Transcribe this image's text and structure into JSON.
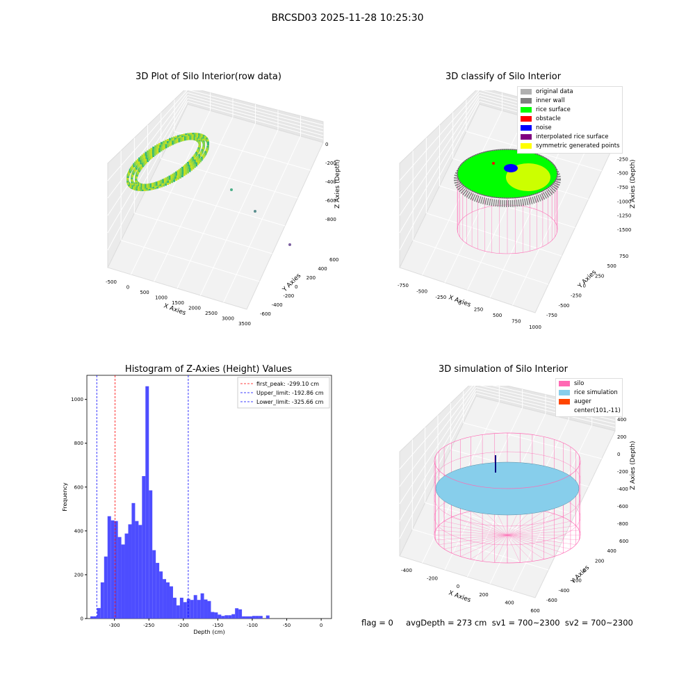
{
  "suptitle": "BRCSD03 2025-11-28 10:25:30",
  "footer": "flag = 0     avgDepth = 273 cm  sv1 = 700~2300  sv2 = 700~2300",
  "colors": {
    "original": "#b0b0b0",
    "inner_wall": "#808080",
    "rice_surface": "#00ff00",
    "obstacle": "#ff0000",
    "noise": "#0000ff",
    "interp": "#800080",
    "symmetric": "#ffff00",
    "silo": "#ff69b4",
    "rice_sim": "#87ceeb",
    "auger": "#ff4500",
    "hist": "#4d4dff"
  },
  "plot1": {
    "title": "3D Plot of Silo Interior(row data)",
    "xlabel": "X Axies",
    "ylabel": "Y Axies",
    "zlabel": "Z Axies (Depth)",
    "xticks": [
      "-500",
      "0",
      "500",
      "1000",
      "1500",
      "2000",
      "2500",
      "3000",
      "3500"
    ],
    "yticks": [
      "-600",
      "-400",
      "-200",
      "0",
      "200",
      "400",
      "600"
    ],
    "zticks": [
      "0",
      "-200",
      "-400",
      "-600",
      "-800"
    ]
  },
  "plot2": {
    "title": "3D classify of Silo Interior",
    "xlabel": "X Axies",
    "ylabel": "Y Axies",
    "zlabel": "Z Axies (Depth)",
    "xticks": [
      "-750",
      "-500",
      "-250",
      "0",
      "250",
      "500",
      "750",
      "1000"
    ],
    "yticks": [
      "-750",
      "-500",
      "-250",
      "0",
      "250",
      "500",
      "750"
    ],
    "zticks": [
      "0",
      "-250",
      "-500",
      "-750",
      "-1000",
      "-1250",
      "-1500"
    ],
    "legend": [
      "original data",
      "inner wall",
      "rice surface",
      "obstacle",
      "noise",
      "interpolated rice surface",
      "symmetric generated points"
    ]
  },
  "plot3": {
    "title": "3D simulation of Silo Interior",
    "xlabel": "X Axies",
    "ylabel": "Y Axies",
    "zlabel": "Z Axies (Depth)",
    "xticks": [
      "-400",
      "-200",
      "0",
      "200",
      "400",
      "600"
    ],
    "yticks": [
      "-600",
      "-400",
      "-200",
      "0",
      "200",
      "400",
      "600"
    ],
    "zticks": [
      "400",
      "200",
      "0",
      "-200",
      "-400",
      "-600",
      "-800"
    ],
    "legend": [
      "silo",
      "rice simulation",
      "auger",
      "center(101,-11)"
    ]
  },
  "chart_data": {
    "type": "bar",
    "title": "Histogram of Z-Axies (Height) Values",
    "xlabel": "Depth (cm)",
    "ylabel": "Frequency",
    "xlim": [
      -340,
      15
    ],
    "ylim": [
      0,
      1110
    ],
    "xticks": [
      "-300",
      "-250",
      "-200",
      "-150",
      "-100",
      "-50",
      "0"
    ],
    "yticks": [
      "0",
      "200",
      "400",
      "600",
      "800",
      "1000"
    ],
    "bin_width": 5,
    "bin_starts": [
      -335,
      -330,
      -325,
      -320,
      -315,
      -310,
      -305,
      -300,
      -295,
      -290,
      -285,
      -280,
      -275,
      -270,
      -265,
      -260,
      -255,
      -250,
      -245,
      -240,
      -235,
      -230,
      -225,
      -220,
      -215,
      -210,
      -205,
      -200,
      -195,
      -190,
      -185,
      -180,
      -175,
      -170,
      -165,
      -160,
      -155,
      -150,
      -145,
      -140,
      -135,
      -130,
      -125,
      -120,
      -115,
      -110,
      -105,
      -100,
      -95,
      -90,
      -85,
      -80,
      -75,
      -70,
      -65,
      -60,
      -55,
      -50,
      -45,
      -40,
      -35,
      -30,
      -25,
      -20,
      -15,
      -10,
      -5,
      0
    ],
    "values": [
      10,
      10,
      48,
      165,
      283,
      467,
      448,
      445,
      372,
      338,
      388,
      430,
      527,
      445,
      427,
      650,
      1060,
      585,
      312,
      254,
      215,
      180,
      165,
      147,
      95,
      60,
      95,
      75,
      90,
      85,
      107,
      85,
      115,
      87,
      80,
      30,
      28,
      18,
      12,
      15,
      15,
      20,
      47,
      42,
      10,
      10,
      10,
      12,
      12,
      12,
      0,
      14,
      0,
      0,
      0,
      0,
      0,
      0,
      0,
      0,
      0,
      0,
      0,
      0,
      0,
      0,
      0,
      0
    ],
    "vlines": [
      {
        "label": "first_peak: -299.10 cm",
        "x": -299.1,
        "color": "#ff0000"
      },
      {
        "label": "Upper_limit: -192.86 cm",
        "x": -192.86,
        "color": "#0000ff"
      },
      {
        "label": "Lower_limit: -325.66 cm",
        "x": -325.66,
        "color": "#0000ff"
      }
    ]
  }
}
